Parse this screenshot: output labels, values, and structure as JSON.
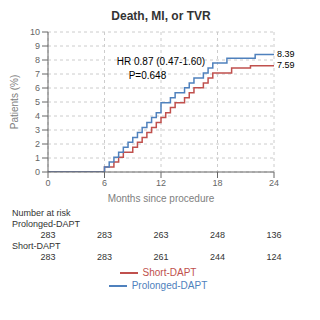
{
  "chart_data": {
    "type": "line",
    "title": "Death, MI, or TVR",
    "x_label": "Months since procedure",
    "y_label": "Patients (%)",
    "annotations": [
      "HR 0.87 (0.47-1.60)",
      "P=0.648"
    ],
    "xlim": [
      0,
      24
    ],
    "ylim": [
      0,
      10
    ],
    "xticks": [
      0,
      6,
      12,
      18,
      24
    ],
    "yticks": [
      0,
      1,
      2,
      3,
      4,
      5,
      6,
      7,
      8,
      9,
      10
    ],
    "grid": true,
    "legend": "bottom",
    "series": [
      {
        "name": "Short-DAPT",
        "color": "#c0504d",
        "end_label": 7.59,
        "x": [
          0,
          6.0,
          6.0,
          7.0,
          7.0,
          7.5,
          7.5,
          8.0,
          8.0,
          9.0,
          9.0,
          9.5,
          9.5,
          10.0,
          10.0,
          10.5,
          10.5,
          11.0,
          11.0,
          11.5,
          11.5,
          12.0,
          12.0,
          12.5,
          12.5,
          13.0,
          13.0,
          13.5,
          13.5,
          14.5,
          14.5,
          15.0,
          15.0,
          15.5,
          15.5,
          16.5,
          16.5,
          17.0,
          17.0,
          17.5,
          17.5,
          18.5,
          18.5,
          19.5,
          19.5,
          20.5,
          20.5,
          21.5,
          21.5,
          22.5,
          22.5,
          23.5,
          23.5,
          24.0
        ],
        "values": [
          0,
          0,
          0.35,
          0.35,
          0.71,
          0.71,
          1.06,
          1.06,
          1.41,
          1.41,
          1.77,
          1.77,
          2.12,
          2.12,
          2.47,
          2.47,
          2.83,
          2.83,
          3.18,
          3.18,
          3.54,
          3.54,
          3.89,
          3.89,
          4.24,
          4.24,
          4.6,
          4.6,
          4.95,
          4.95,
          5.3,
          5.3,
          5.66,
          5.66,
          6.01,
          6.01,
          6.36,
          6.36,
          6.72,
          6.72,
          7.07,
          7.07,
          7.07,
          7.07,
          7.42,
          7.42,
          7.42,
          7.42,
          7.59,
          7.59,
          7.59,
          7.59,
          7.59,
          7.59
        ]
      },
      {
        "name": "Prolonged-DAPT",
        "color": "#4f81bd",
        "end_label": 8.39,
        "x": [
          0,
          6.0,
          6.0,
          6.5,
          6.5,
          7.0,
          7.0,
          7.5,
          7.5,
          8.0,
          8.0,
          8.5,
          8.5,
          9.0,
          9.0,
          9.5,
          9.5,
          10.0,
          10.0,
          10.5,
          10.5,
          11.0,
          11.0,
          11.5,
          11.5,
          12.0,
          12.0,
          13.0,
          13.0,
          13.5,
          13.5,
          14.5,
          14.5,
          15.0,
          15.0,
          15.5,
          15.5,
          16.5,
          16.5,
          17.0,
          17.0,
          17.5,
          17.5,
          18.5,
          18.5,
          19.0,
          19.0,
          20.0,
          20.0,
          21.0,
          21.0,
          22.0,
          22.0,
          23.0,
          23.0,
          23.5,
          23.5,
          24.0
        ],
        "values": [
          0,
          0,
          0.35,
          0.35,
          0.71,
          0.71,
          1.06,
          1.06,
          1.41,
          1.41,
          1.77,
          1.77,
          2.12,
          2.12,
          2.47,
          2.47,
          2.83,
          2.83,
          3.18,
          3.18,
          3.54,
          3.54,
          3.89,
          3.89,
          4.24,
          4.24,
          4.95,
          4.95,
          5.3,
          5.3,
          5.66,
          5.66,
          6.01,
          6.01,
          6.36,
          6.36,
          6.72,
          6.72,
          7.07,
          7.07,
          7.42,
          7.42,
          7.78,
          7.78,
          7.78,
          7.78,
          8.13,
          8.13,
          8.13,
          8.13,
          8.13,
          8.13,
          8.39,
          8.39,
          8.39,
          8.39,
          8.39,
          8.39
        ]
      }
    ],
    "risk_table": {
      "header": "Number at risk",
      "timepoints": [
        0,
        6,
        12,
        18,
        24
      ],
      "rows": [
        {
          "name": "Prolonged-DAPT",
          "values": [
            283,
            283,
            263,
            248,
            136
          ]
        },
        {
          "name": "Short-DAPT",
          "values": [
            283,
            283,
            261,
            244,
            124
          ]
        }
      ]
    }
  }
}
